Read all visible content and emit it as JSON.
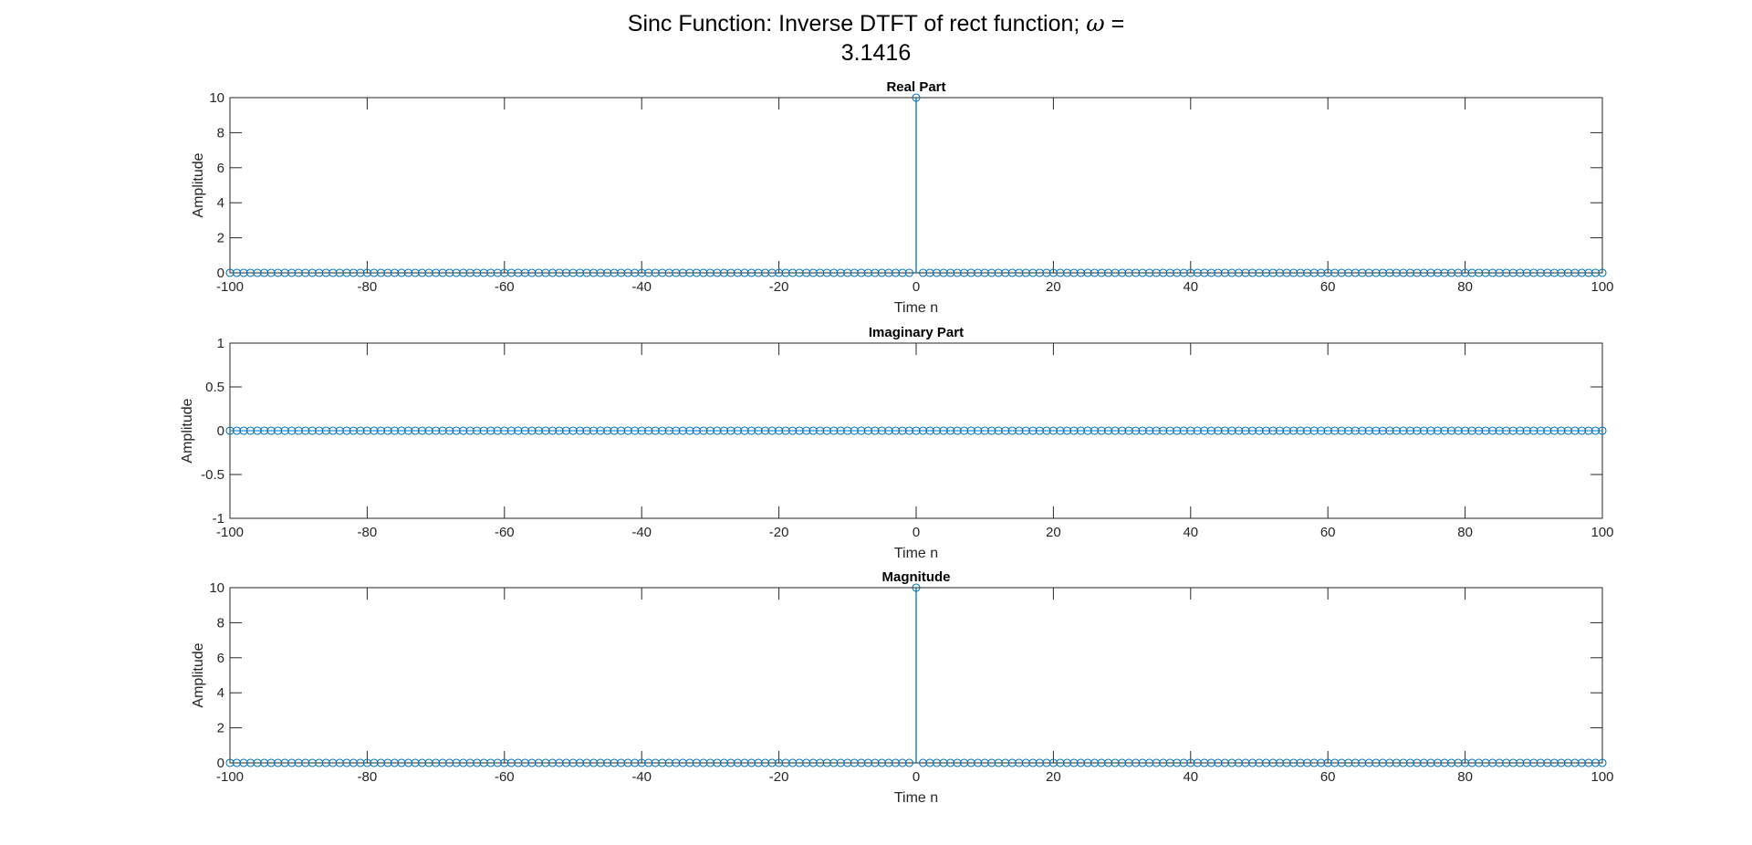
{
  "figure": {
    "title_line1_prefix": "Sinc Function: Inverse DTFT of rect function; ",
    "title_omega": "ω",
    "title_line1_suffix": " =",
    "title_line2": "3.1416"
  },
  "style": {
    "stem_color": "#0072BD",
    "axes_color": "#262626"
  },
  "chart_data": [
    {
      "type": "stem",
      "title": "Real Part",
      "xlabel": "Time n",
      "ylabel": "Amplitude",
      "xlim": [
        -100,
        100
      ],
      "ylim": [
        0,
        10
      ],
      "xticks": [
        "-100",
        "-80",
        "-60",
        "-40",
        "-20",
        "0",
        "20",
        "40",
        "60",
        "80",
        "100"
      ],
      "yticks": [
        "0",
        "2",
        "4",
        "6",
        "8",
        "10"
      ],
      "grid": false,
      "x_range": [
        -100,
        100
      ],
      "baseline_value": 0,
      "nonzero": [
        {
          "x": 0,
          "y": 10
        }
      ]
    },
    {
      "type": "stem",
      "title": "Imaginary Part",
      "xlabel": "Time n",
      "ylabel": "Amplitude",
      "xlim": [
        -100,
        100
      ],
      "ylim": [
        -1,
        1
      ],
      "xticks": [
        "-100",
        "-80",
        "-60",
        "-40",
        "-20",
        "0",
        "20",
        "40",
        "60",
        "80",
        "100"
      ],
      "yticks": [
        "-1",
        "-0.5",
        "0",
        "0.5",
        "1"
      ],
      "grid": false,
      "x_range": [
        -100,
        100
      ],
      "baseline_value": 0,
      "nonzero": []
    },
    {
      "type": "stem",
      "title": "Magnitude",
      "xlabel": "Time n",
      "ylabel": "Amplitude",
      "xlim": [
        -100,
        100
      ],
      "ylim": [
        0,
        10
      ],
      "xticks": [
        "-100",
        "-80",
        "-60",
        "-40",
        "-20",
        "0",
        "20",
        "40",
        "60",
        "80",
        "100"
      ],
      "yticks": [
        "0",
        "2",
        "4",
        "6",
        "8",
        "10"
      ],
      "grid": false,
      "x_range": [
        -100,
        100
      ],
      "baseline_value": 0,
      "nonzero": [
        {
          "x": 0,
          "y": 10
        }
      ]
    }
  ]
}
